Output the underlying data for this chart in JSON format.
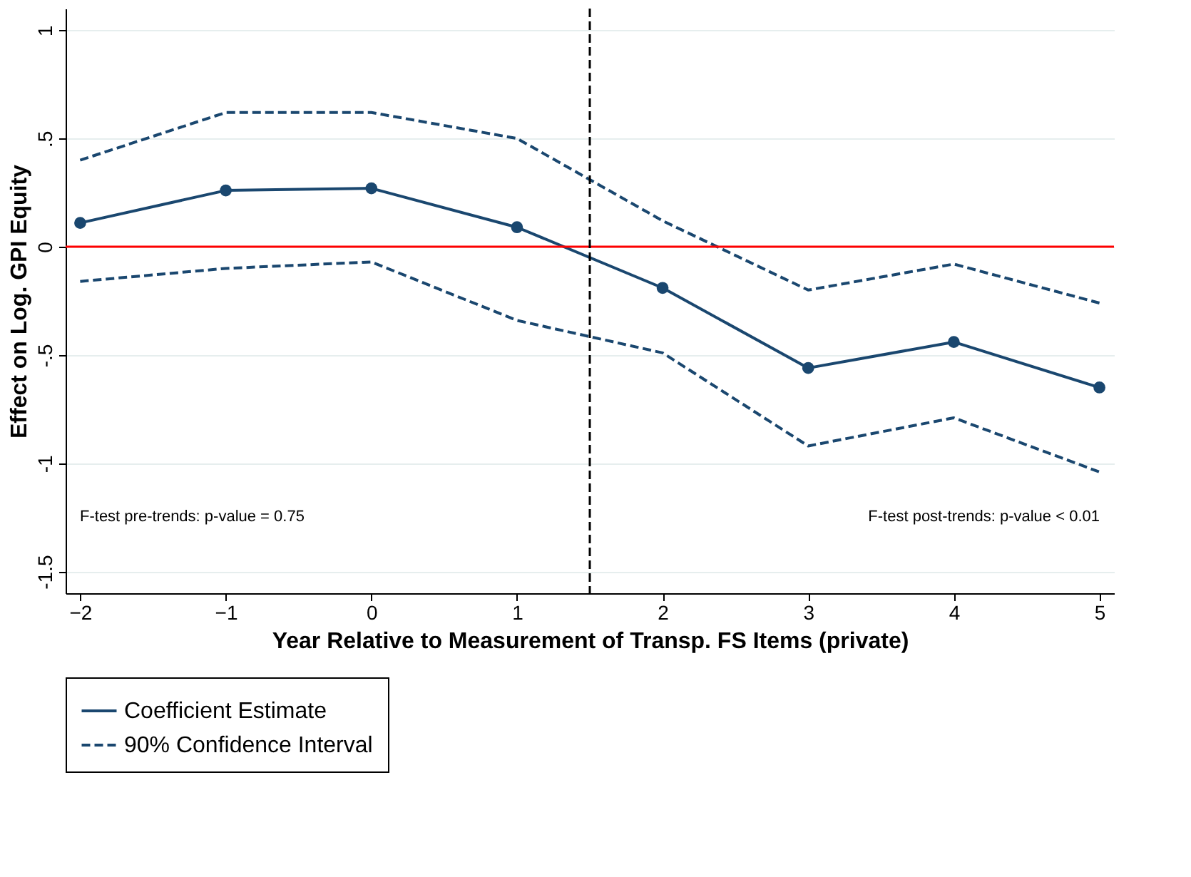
{
  "chart_data": {
    "type": "line",
    "xlabel": "Year Relative to Measurement of Transp. FS Items (private)",
    "ylabel": "Effect on Log. GPI Equity",
    "x": [
      -2,
      -1,
      0,
      1,
      2,
      3,
      4,
      5
    ],
    "series": [
      {
        "name": "Coefficient Estimate",
        "color": "#1a476f",
        "marker": "circle",
        "line_style": "solid",
        "values": [
          0.11,
          0.26,
          0.27,
          0.09,
          -0.19,
          -0.56,
          -0.44,
          -0.65
        ]
      },
      {
        "name": "90% Confidence Interval",
        "color": "#1a476f",
        "marker": "none",
        "line_style": "dashed",
        "values": [
          0.4,
          0.62,
          0.62,
          0.5,
          0.12,
          -0.2,
          -0.08,
          -0.26
        ]
      },
      {
        "color": "#1a476f",
        "marker": "none",
        "line_style": "dashed",
        "values": [
          -0.16,
          -0.1,
          -0.07,
          -0.34,
          -0.49,
          -0.92,
          -0.79,
          -1.04
        ]
      }
    ],
    "xlim": [
      -2.1,
      5.1
    ],
    "xticks": [
      -2,
      -1,
      0,
      1,
      2,
      3,
      4,
      5
    ],
    "ylim": [
      -1.6,
      1.1
    ],
    "yticks": [
      {
        "value": 1,
        "label": "1"
      },
      {
        "value": 0.5,
        "label": ".5"
      },
      {
        "value": 0,
        "label": "0"
      },
      {
        "value": -0.5,
        "label": "-.5"
      },
      {
        "value": -1,
        "label": "-1"
      },
      {
        "value": -1.5,
        "label": "-1.5"
      }
    ],
    "grid": "y",
    "legend": "bottom",
    "ref_lines": [
      {
        "axis": "y",
        "value": 0,
        "color": "#ff0000",
        "line_style": "solid"
      },
      {
        "axis": "x",
        "value": 1.5,
        "color": "#000000",
        "line_style": "dashed"
      }
    ],
    "annotations": [
      "F-test pre-trends: p-value = 0.75",
      "F-test post-trends: p-value < 0.01"
    ]
  }
}
